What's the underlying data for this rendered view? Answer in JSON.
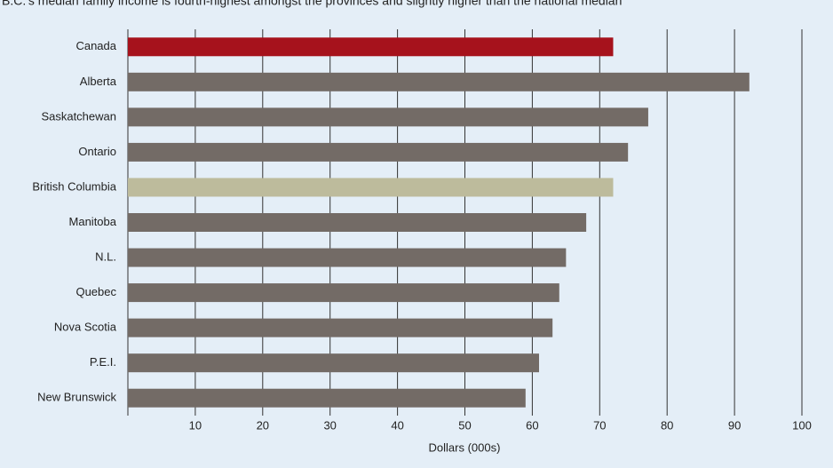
{
  "chart_data": {
    "type": "barh",
    "title": "B.C.'s median family income is fourth-highest amongst the provinces and slightly higher than the national median",
    "categories": [
      "Canada",
      "Alberta",
      "Saskatchewan",
      "Ontario",
      "British Columbia",
      "Manitoba",
      "N.L.",
      "Quebec",
      "Nova Scotia",
      "P.E.I.",
      "New Brunswick"
    ],
    "values": [
      72,
      92.2,
      77.2,
      74.2,
      72,
      68,
      65,
      64,
      63,
      61,
      59
    ],
    "colors": [
      "#a6121c",
      "#736b66",
      "#736b66",
      "#736b66",
      "#bdbb9c",
      "#736b66",
      "#736b66",
      "#736b66",
      "#736b66",
      "#736b66",
      "#736b66"
    ],
    "xlabel": "Dollars (000s)",
    "xlim": [
      0,
      100
    ],
    "xticks": [
      10,
      20,
      30,
      40,
      50,
      60,
      70,
      80,
      90,
      100
    ],
    "grid": true
  }
}
